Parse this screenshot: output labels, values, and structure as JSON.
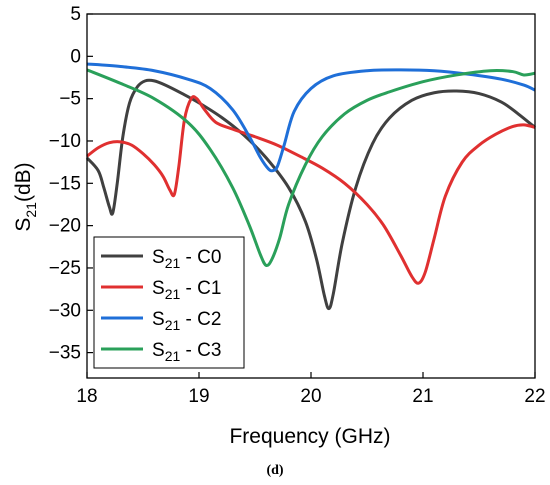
{
  "caption": "(d)",
  "chart_data": {
    "type": "line",
    "xlabel": "Frequency (GHz)",
    "ylabel": "S21(dB)",
    "xlim": [
      18,
      22
    ],
    "ylim": [
      -38,
      5
    ],
    "xticks": [
      18,
      19,
      20,
      21,
      22
    ],
    "xtick_labels": [
      "18",
      "19",
      "20",
      "21",
      "22"
    ],
    "yticks": [
      5,
      0,
      -5,
      -10,
      -15,
      -20,
      -25,
      -30,
      -35
    ],
    "ytick_labels": [
      "5",
      "0",
      "−5",
      "−10",
      "−15",
      "−20",
      "−25",
      "−30",
      "−35"
    ],
    "grid": false,
    "legend_position": "bottom-left",
    "series": [
      {
        "name": "S21 - C0",
        "color": "#404040",
        "x": [
          18.0,
          18.1,
          18.15,
          18.2,
          18.23,
          18.27,
          18.32,
          18.38,
          18.45,
          18.52,
          18.6,
          18.7,
          18.85,
          19.0,
          19.2,
          19.4,
          19.6,
          19.8,
          19.95,
          20.05,
          20.12,
          20.16,
          20.2,
          20.28,
          20.4,
          20.55,
          20.7,
          20.9,
          21.1,
          21.3,
          21.5,
          21.7,
          21.85,
          22.0
        ],
        "y": [
          -12,
          -13.5,
          -15.5,
          -17.8,
          -18.5,
          -15,
          -9.5,
          -5.5,
          -3.6,
          -2.9,
          -2.9,
          -3.4,
          -4.4,
          -5.5,
          -7.2,
          -9.3,
          -12,
          -15.5,
          -19.5,
          -24,
          -28.3,
          -29.8,
          -28,
          -22,
          -15.5,
          -10.3,
          -7.3,
          -5.2,
          -4.3,
          -4.1,
          -4.4,
          -5.4,
          -6.8,
          -8.4
        ]
      },
      {
        "name": "S21 - C1",
        "color": "#e03030",
        "x": [
          18.0,
          18.1,
          18.2,
          18.3,
          18.4,
          18.5,
          18.6,
          18.68,
          18.74,
          18.78,
          18.82,
          18.87,
          18.93,
          18.98,
          19.05,
          19.15,
          19.3,
          19.5,
          19.7,
          19.9,
          20.1,
          20.3,
          20.5,
          20.65,
          20.8,
          20.9,
          20.96,
          21.02,
          21.1,
          21.2,
          21.35,
          21.5,
          21.65,
          21.8,
          21.9,
          22.0
        ],
        "y": [
          -11.8,
          -10.8,
          -10.2,
          -10.1,
          -10.5,
          -11.5,
          -12.8,
          -14.2,
          -15.8,
          -16.3,
          -13,
          -7.5,
          -5,
          -5,
          -6.3,
          -7.8,
          -8.6,
          -9.5,
          -10.5,
          -11.8,
          -13.2,
          -15,
          -17.5,
          -20,
          -23.5,
          -26,
          -26.8,
          -25.5,
          -21.5,
          -16.5,
          -12.5,
          -10.5,
          -9.2,
          -8.3,
          -8.1,
          -8.4
        ]
      },
      {
        "name": "S21 - C2",
        "color": "#1f6fd8",
        "x": [
          18.0,
          18.3,
          18.6,
          18.9,
          19.1,
          19.3,
          19.45,
          19.55,
          19.62,
          19.66,
          19.7,
          19.76,
          19.85,
          20.0,
          20.2,
          20.5,
          20.8,
          21.1,
          21.4,
          21.7,
          21.9,
          22.0
        ],
        "y": [
          -0.9,
          -1.2,
          -1.7,
          -2.7,
          -3.8,
          -6.3,
          -9.5,
          -12,
          -13.3,
          -13.5,
          -13,
          -10.5,
          -6.5,
          -3.8,
          -2.3,
          -1.7,
          -1.6,
          -1.7,
          -2.1,
          -2.7,
          -3.4,
          -4.0
        ]
      },
      {
        "name": "S21 - C3",
        "color": "#2aa05a",
        "x": [
          18.0,
          18.3,
          18.6,
          18.9,
          19.1,
          19.3,
          19.45,
          19.55,
          19.6,
          19.65,
          19.72,
          19.8,
          19.95,
          20.1,
          20.3,
          20.5,
          20.7,
          21.0,
          21.3,
          21.6,
          21.8,
          21.9,
          22.0
        ],
        "y": [
          -1.6,
          -3.2,
          -5,
          -7.8,
          -11,
          -15.5,
          -20,
          -23.5,
          -24.7,
          -24,
          -21.5,
          -17.5,
          -12.8,
          -9.5,
          -6.8,
          -5.2,
          -4.2,
          -3,
          -2.2,
          -1.7,
          -1.8,
          -2.2,
          -2.0
        ]
      }
    ]
  }
}
